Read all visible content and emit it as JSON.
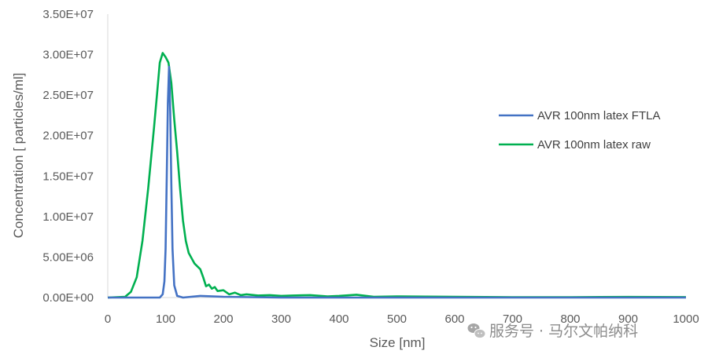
{
  "chart_data": {
    "type": "line",
    "xlabel": "Size [nm]",
    "ylabel": "Concentration [ particles/ml]",
    "xlim": [
      0,
      1000
    ],
    "ylim": [
      0,
      35000000
    ],
    "x_ticks": [
      0,
      100,
      200,
      300,
      400,
      500,
      600,
      700,
      800,
      900,
      1000
    ],
    "x_tick_labels": [
      "0",
      "100",
      "200",
      "300",
      "400",
      "500",
      "600",
      "700",
      "800",
      "900",
      "1000"
    ],
    "y_ticks": [
      0,
      5000000,
      10000000,
      15000000,
      20000000,
      25000000,
      30000000,
      35000000
    ],
    "y_tick_labels": [
      "0.00E+00",
      "5.00E+06",
      "1.00E+07",
      "1.50E+07",
      "2.00E+07",
      "2.50E+07",
      "3.00E+07",
      "3.50E+07"
    ],
    "grid": false,
    "legend_position": "right",
    "series": [
      {
        "name": "AVR 100nm latex FTLA",
        "color": "#4472C4",
        "x": [
          0,
          80,
          90,
          95,
          98,
          100,
          102,
          104,
          106,
          108,
          110,
          112,
          115,
          120,
          130,
          160,
          200,
          300,
          1000
        ],
        "y": [
          0,
          0,
          0,
          400000,
          2000000,
          6000000,
          15000000,
          24000000,
          28500000,
          23000000,
          14000000,
          6000000,
          1500000,
          200000,
          0,
          200000,
          100000,
          0,
          0
        ]
      },
      {
        "name": "AVR 100nm latex raw",
        "color": "#00B050",
        "x": [
          0,
          30,
          40,
          50,
          60,
          70,
          80,
          85,
          90,
          95,
          100,
          105,
          110,
          115,
          120,
          125,
          130,
          135,
          140,
          150,
          160,
          165,
          170,
          175,
          180,
          185,
          190,
          200,
          210,
          220,
          230,
          240,
          260,
          280,
          300,
          320,
          350,
          380,
          400,
          430,
          460,
          500,
          550,
          600,
          700,
          800,
          900,
          1000
        ],
        "y": [
          0,
          100000,
          700000,
          2500000,
          7000000,
          13500000,
          21000000,
          25000000,
          29000000,
          30200000,
          29700000,
          29000000,
          26500000,
          22000000,
          18000000,
          13500000,
          9500000,
          7000000,
          5500000,
          4200000,
          3500000,
          2500000,
          1400000,
          1600000,
          1100000,
          1300000,
          800000,
          900000,
          400000,
          600000,
          300000,
          400000,
          250000,
          300000,
          200000,
          250000,
          300000,
          150000,
          200000,
          350000,
          100000,
          150000,
          120000,
          100000,
          50000,
          50000,
          80000,
          60000
        ]
      }
    ]
  },
  "watermark": {
    "text": "服务号 · 马尔文帕纳科",
    "icon": "wechat-icon"
  }
}
